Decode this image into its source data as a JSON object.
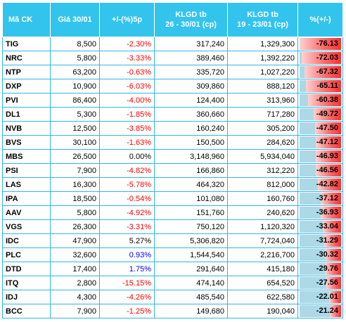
{
  "headers": [
    "Mã CK",
    "Giá 30/01",
    "+/-(%)5p",
    "KLGD tb\n26 - 30/01 (cp)",
    "KLGD tb\n19 - 23/01 (cp)",
    "%(+/-)"
  ],
  "rows": [
    {
      "code": "TIG",
      "price": "8,500",
      "change": "-2.30%",
      "vol1": "317,240",
      "vol2": "1,329,300",
      "pct": "-76.13",
      "pct_value": -76.13,
      "change_color": "red"
    },
    {
      "code": "NRC",
      "price": "5,800",
      "change": "-3.33%",
      "vol1": "389,460",
      "vol2": "1,392,220",
      "pct": "-72.03",
      "pct_value": -72.03,
      "change_color": "red"
    },
    {
      "code": "NTP",
      "price": "63,200",
      "change": "-0.63%",
      "vol1": "335,720",
      "vol2": "1,027,220",
      "pct": "-67.32",
      "pct_value": -67.32,
      "change_color": "red"
    },
    {
      "code": "DXP",
      "price": "10,900",
      "change": "-6.03%",
      "vol1": "309,860",
      "vol2": "888,120",
      "pct": "-65.11",
      "pct_value": -65.11,
      "change_color": "red"
    },
    {
      "code": "PVI",
      "price": "86,400",
      "change": "-4.00%",
      "vol1": "124,400",
      "vol2": "313,960",
      "pct": "-60.38",
      "pct_value": -60.38,
      "change_color": "red"
    },
    {
      "code": "DL1",
      "price": "5,300",
      "change": "-1.85%",
      "vol1": "360,660",
      "vol2": "717,280",
      "pct": "-49.72",
      "pct_value": -49.72,
      "change_color": "red"
    },
    {
      "code": "NVB",
      "price": "12,500",
      "change": "-3.85%",
      "vol1": "160,240",
      "vol2": "305,200",
      "pct": "-47.50",
      "pct_value": -47.5,
      "change_color": "red"
    },
    {
      "code": "BVS",
      "price": "30,100",
      "change": "-1.63%",
      "vol1": "150,500",
      "vol2": "284,620",
      "pct": "-47.12",
      "pct_value": -47.12,
      "change_color": "red"
    },
    {
      "code": "MBS",
      "price": "26,500",
      "change": "0.00%",
      "vol1": "3,148,960",
      "vol2": "5,934,040",
      "pct": "-46.93",
      "pct_value": -46.93,
      "change_color": "black"
    },
    {
      "code": "PSI",
      "price": "7,900",
      "change": "-4.82%",
      "vol1": "166,860",
      "vol2": "312,220",
      "pct": "-46.56",
      "pct_value": -46.56,
      "change_color": "red"
    },
    {
      "code": "LAS",
      "price": "16,300",
      "change": "-5.78%",
      "vol1": "464,320",
      "vol2": "812,000",
      "pct": "-42.82",
      "pct_value": -42.82,
      "change_color": "red"
    },
    {
      "code": "IPA",
      "price": "18,500",
      "change": "-0.54%",
      "vol1": "101,080",
      "vol2": "160,760",
      "pct": "-37.12",
      "pct_value": -37.12,
      "change_color": "red"
    },
    {
      "code": "AAV",
      "price": "5,800",
      "change": "-4.92%",
      "vol1": "151,760",
      "vol2": "240,620",
      "pct": "-36.93",
      "pct_value": -36.93,
      "change_color": "red"
    },
    {
      "code": "VGS",
      "price": "26,300",
      "change": "-3.31%",
      "vol1": "750,120",
      "vol2": "1,120,320",
      "pct": "-33.04",
      "pct_value": -33.04,
      "change_color": "red"
    },
    {
      "code": "IDC",
      "price": "47,900",
      "change": "5.27%",
      "vol1": "5,306,820",
      "vol2": "7,724,040",
      "pct": "-31.29",
      "pct_value": -31.29,
      "change_color": "black"
    },
    {
      "code": "PLC",
      "price": "32,600",
      "change": "0.93%",
      "vol1": "1,544,540",
      "vol2": "2,216,700",
      "pct": "-30.32",
      "pct_value": -30.32,
      "change_color": "blue"
    },
    {
      "code": "DTD",
      "price": "17,400",
      "change": "1.75%",
      "vol1": "291,640",
      "vol2": "415,180",
      "pct": "-29.76",
      "pct_value": -29.76,
      "change_color": "blue"
    },
    {
      "code": "ITQ",
      "price": "2,800",
      "change": "-15.15%",
      "vol1": "474,140",
      "vol2": "654,520",
      "pct": "-27.56",
      "pct_value": -27.56,
      "change_color": "red"
    },
    {
      "code": "IDJ",
      "price": "4,300",
      "change": "-4.26%",
      "vol1": "485,540",
      "vol2": "622,580",
      "pct": "-22.01",
      "pct_value": -22.01,
      "change_color": "red"
    },
    {
      "code": "BCC",
      "price": "7,900",
      "change": "-1.25%",
      "vol1": "149,680",
      "vol2": "190,040",
      "pct": "-21.24",
      "pct_value": -21.24,
      "change_color": "red"
    }
  ],
  "colors": {
    "header_bg": "#33c4ee",
    "border": "#2fb8e6",
    "bar_bg": "#add8e6",
    "bar_fill": "#ff2f2f",
    "negative_text": "#ff0000",
    "positive_text": "#0000ff"
  }
}
